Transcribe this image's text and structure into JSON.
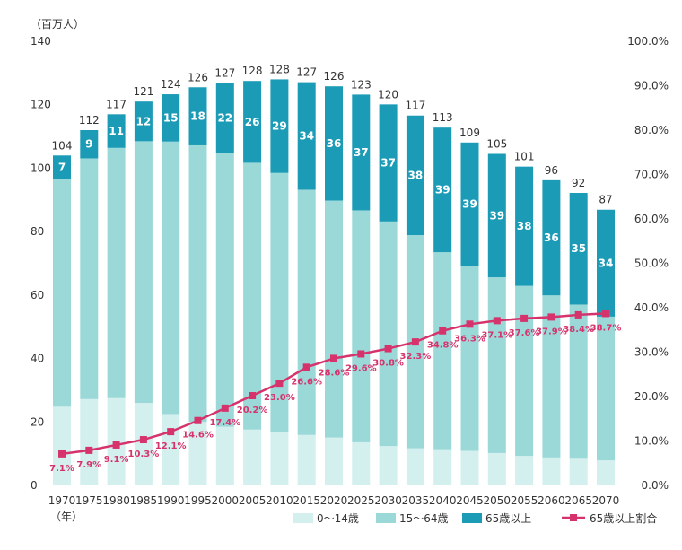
{
  "chart_data": {
    "type": "bar",
    "stacked": true,
    "y_unit_label": "（百万人）",
    "x_unit_label": "（年）",
    "categories": [
      "1970",
      "1975",
      "1980",
      "1985",
      "1990",
      "1995",
      "2000",
      "2005",
      "2010",
      "2015",
      "2020",
      "2025",
      "2030",
      "2035",
      "2040",
      "2045",
      "2050",
      "2055",
      "2060",
      "2065",
      "2070"
    ],
    "series": [
      {
        "name": "0～14歳",
        "color": "#d3efee",
        "values": [
          24.8,
          27.2,
          27.5,
          26.0,
          22.5,
          20.0,
          18.5,
          17.6,
          16.8,
          15.9,
          15.1,
          13.6,
          12.4,
          11.7,
          11.4,
          10.9,
          10.2,
          9.3,
          8.8,
          8.4,
          7.9
        ]
      },
      {
        "name": "15～64歳",
        "color": "#9bd8d8",
        "values": [
          71.8,
          75.9,
          78.9,
          82.5,
          85.9,
          87.2,
          86.3,
          84.1,
          81.7,
          77.3,
          74.7,
          73.1,
          70.8,
          67.2,
          62.1,
          58.3,
          55.4,
          53.6,
          51.1,
          48.6,
          45.3
        ]
      },
      {
        "name": "65歳以上",
        "color": "#1c9bb7",
        "values": [
          7.4,
          8.9,
          10.6,
          12.5,
          14.9,
          18.3,
          22.0,
          25.8,
          29.5,
          33.9,
          36.0,
          36.5,
          36.9,
          37.7,
          39.3,
          38.9,
          38.9,
          37.6,
          36.3,
          35.2,
          33.7
        ]
      }
    ],
    "top_labels": [
      7,
      9,
      11,
      12,
      15,
      18,
      22,
      26,
      29,
      34,
      36,
      37,
      37,
      38,
      39,
      39,
      39,
      38,
      36,
      35,
      34
    ],
    "totals": [
      104,
      112,
      117,
      121,
      124,
      126,
      127,
      128,
      128,
      127,
      126,
      123,
      120,
      117,
      113,
      109,
      105,
      101,
      96,
      92,
      87
    ],
    "line": {
      "name": "65歳以上割合",
      "color": "#d6336c",
      "values": [
        7.1,
        7.9,
        9.1,
        10.3,
        12.1,
        14.6,
        17.4,
        20.2,
        23.0,
        26.6,
        28.6,
        29.6,
        30.8,
        32.3,
        34.8,
        36.3,
        37.1,
        37.6,
        37.9,
        38.4,
        38.7
      ],
      "labels": [
        "7.1%",
        "7.9%",
        "9.1%",
        "10.3%",
        "12.1%",
        "14.6%",
        "17.4%",
        "20.2%",
        "23.0%",
        "26.6%",
        "28.6%",
        "29.6%",
        "30.8%",
        "32.3%",
        "34.8%",
        "36.3%",
        "37.1%",
        "37.6%",
        "37.9%",
        "38.4%",
        "38.7%"
      ]
    },
    "y_left": {
      "min": 0,
      "max": 140,
      "ticks": [
        0,
        20,
        40,
        60,
        80,
        100,
        120,
        140
      ]
    },
    "y_right": {
      "min": 0,
      "max": 100,
      "ticks": [
        "0.0%",
        "10.0%",
        "20.0%",
        "30.0%",
        "40.0%",
        "50.0%",
        "60.0%",
        "70.0%",
        "80.0%",
        "90.0%",
        "100.0%"
      ]
    },
    "legend_position": "bottom-right",
    "grid": false
  }
}
